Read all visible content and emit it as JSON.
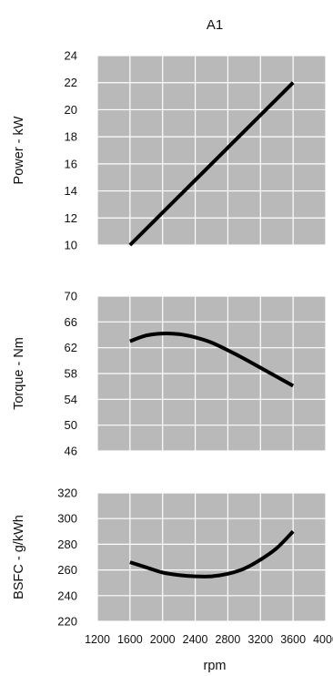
{
  "chart_data": {
    "title": "A1",
    "type": "line",
    "xlabel": "rpm",
    "xlim": [
      1200,
      4000
    ],
    "xticks": [
      "1200",
      "1600",
      "2000",
      "2400",
      "2800",
      "3200",
      "3600",
      "4000"
    ],
    "grid": true,
    "panels": [
      {
        "ylabel": "Power - kW",
        "ylim": [
          10,
          24
        ],
        "yticks": [
          "10",
          "12",
          "14",
          "16",
          "18",
          "20",
          "22",
          "24"
        ],
        "series": [
          {
            "x": [
              1600,
              2000,
              2400,
              2800,
              3200,
              3600
            ],
            "y": [
              10.0,
              12.4,
              14.8,
              17.2,
              19.6,
              22.0
            ]
          }
        ]
      },
      {
        "ylabel": "Torque - Nm",
        "ylim": [
          46,
          70
        ],
        "yticks": [
          "46",
          "50",
          "54",
          "58",
          "62",
          "66",
          "70"
        ],
        "series": [
          {
            "x": [
              1600,
              1800,
              2000,
              2200,
              2400,
              2600,
              2800,
              3000,
              3200,
              3400,
              3600
            ],
            "y": [
              63.0,
              63.9,
              64.2,
              64.1,
              63.6,
              62.8,
              61.6,
              60.3,
              58.9,
              57.5,
              56.1
            ]
          }
        ]
      },
      {
        "ylabel": "BSFC - g/kWh",
        "ylim": [
          220,
          320
        ],
        "yticks": [
          "220",
          "240",
          "260",
          "280",
          "300",
          "320"
        ],
        "series": [
          {
            "x": [
              1600,
              1800,
              2000,
              2200,
              2400,
              2600,
              2800,
              3000,
              3200,
              3400,
              3600
            ],
            "y": [
              266,
              262,
              258,
              256,
              255,
              255,
              257,
              261,
              268,
              277,
              290
            ]
          }
        ]
      }
    ]
  }
}
